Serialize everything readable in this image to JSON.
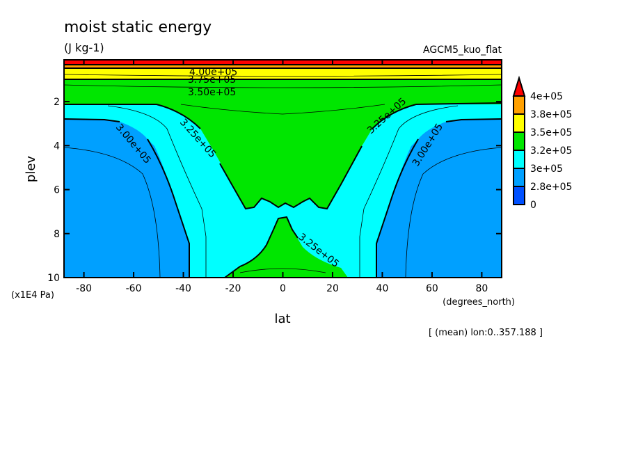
{
  "chart_data": {
    "type": "contour",
    "title": "moist static energy",
    "units": "(J kg-1)",
    "model": "AGCM5_kuo_flat",
    "xlabel": "lat",
    "xunits": "(degrees_north)",
    "ylabel": "plev",
    "yunits": "(x1E4 Pa)",
    "footnote": "[ (mean) lon:0..357.188 ]",
    "xlim": [
      -88,
      88
    ],
    "ylim": [
      0.1,
      10
    ],
    "y_inverted": true,
    "x_ticks": [
      "-80",
      "-60",
      "-40",
      "-20",
      "0",
      "20",
      "40",
      "60",
      "80"
    ],
    "x_tick_values": [
      -80,
      -60,
      -40,
      -20,
      0,
      20,
      40,
      60,
      80
    ],
    "y_ticks": [
      "2",
      "4",
      "6",
      "8",
      "10"
    ],
    "y_tick_values": [
      2,
      4,
      6,
      8,
      10
    ],
    "colorbar": {
      "labels": [
        "4e+05",
        "3.8e+05",
        "3.5e+05",
        "3.2e+05",
        "3e+05",
        "2.8e+05",
        "0"
      ],
      "colors": [
        "#ff0000",
        "#ffa000",
        "#ffff00",
        "#00e600",
        "#00ffff",
        "#00a0ff",
        "#0050ff"
      ]
    },
    "contour_labels": [
      "4.00e+05",
      "3.75e+05",
      "3.50e+05",
      "3.25e+05",
      "3.00e+05",
      "3.25e+05",
      "3.00e+05",
      "3.25e+05"
    ],
    "regions": {
      "green_core": {
        "lat": [
          -28,
          28
        ],
        "plev": [
          1.5,
          6.9
        ]
      },
      "green_surface": {
        "lat": [
          -27,
          27
        ],
        "plev": [
          7.2,
          10
        ]
      },
      "blue_poles": {
        "lat_abs_min": 38,
        "plev": [
          2.8,
          10
        ]
      }
    }
  }
}
